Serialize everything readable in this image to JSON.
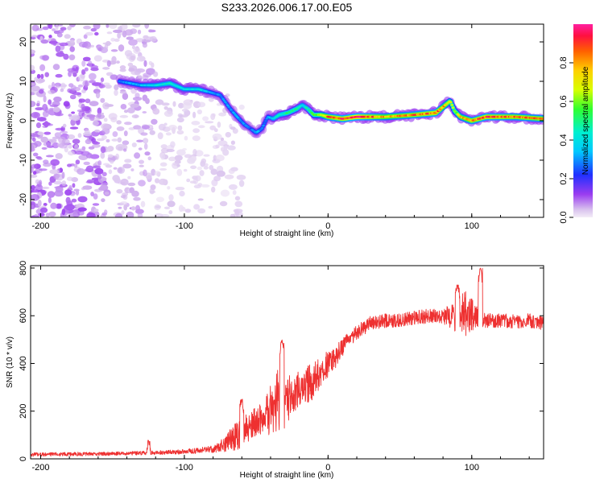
{
  "title": "S233.2026.006.17.00.E05",
  "chart_data": [
    {
      "type": "heatmap",
      "name": "spectrogram",
      "xlabel": "Height of straight line (km)",
      "ylabel": "Frequency (Hz)",
      "xlim": [
        -207,
        150
      ],
      "ylim": [
        -24.5,
        24.5
      ],
      "xticks": [
        -200,
        -100,
        0,
        100
      ],
      "yticks": [
        -20,
        -10,
        0,
        10,
        20
      ],
      "colorbar": {
        "label": "Normalized spectral amplitude",
        "range": [
          0,
          1
        ],
        "ticks": [
          0.0,
          0.2,
          0.4,
          0.6,
          0.8
        ]
      },
      "ridge": {
        "description": "frequency of the dominant signal versus height",
        "x": [
          -145,
          -130,
          -120,
          -110,
          -100,
          -90,
          -80,
          -75,
          -68,
          -62,
          -58,
          -54,
          -50,
          -46,
          -42,
          -38,
          -34,
          -28,
          -22,
          -18,
          -14,
          -10,
          -5,
          0,
          10,
          20,
          40,
          60,
          75,
          85,
          88,
          92,
          100,
          110,
          130,
          150
        ],
        "y": [
          10,
          9,
          9,
          9.5,
          8,
          8,
          7,
          6.5,
          3,
          0.5,
          -1,
          -2,
          -3,
          -2,
          1,
          0.5,
          1.5,
          2,
          3,
          4,
          3,
          1.5,
          1.5,
          1,
          0.5,
          1,
          1,
          1.5,
          2,
          5,
          2.5,
          1,
          0,
          1,
          1,
          0.5
        ],
        "amplitude": [
          0.3,
          0.35,
          0.4,
          0.45,
          0.4,
          0.4,
          0.3,
          0.3,
          0.3,
          0.3,
          0.3,
          0.25,
          0.35,
          0.3,
          0.3,
          0.4,
          0.45,
          0.5,
          0.5,
          0.4,
          0.45,
          0.55,
          0.7,
          0.85,
          0.9,
          0.95,
          0.8,
          0.85,
          0.9,
          0.7,
          0.6,
          0.75,
          0.85,
          0.9,
          0.85,
          0.85
        ]
      },
      "noise": {
        "description": "scattered low-amplitude (purple) patches",
        "regions": [
          {
            "x": [
              -207,
              -155
            ],
            "y": [
              -24.5,
              24.5
            ],
            "amplitude": [
              0.03,
              0.12
            ]
          },
          {
            "x": [
              -155,
              -120
            ],
            "y": [
              -24.5,
              24.5
            ],
            "amplitude": [
              0.02,
              0.07
            ]
          },
          {
            "x": [
              -120,
              -60
            ],
            "y": [
              -24.5,
              7
            ],
            "amplitude": [
              0.01,
              0.04
            ]
          }
        ]
      }
    },
    {
      "type": "line",
      "name": "snr",
      "xlabel": "Height of straight line (km)",
      "ylabel": "SNR (10 * v/v)",
      "color": "#ee3030",
      "xlim": [
        -207,
        150
      ],
      "ylim": [
        0,
        810
      ],
      "xticks": [
        -200,
        -100,
        0,
        100
      ],
      "yticks": [
        0,
        200,
        400,
        600,
        800
      ],
      "envelope_x": [
        -207,
        -180,
        -150,
        -125,
        -100,
        -80,
        -70,
        -60,
        -55,
        -50,
        -45,
        -40,
        -35,
        -30,
        -25,
        -20,
        -15,
        -10,
        -5,
        0,
        5,
        10,
        15,
        20,
        25,
        30,
        40,
        50,
        60,
        70,
        80,
        85,
        90,
        95,
        100,
        105,
        110,
        120,
        130,
        140,
        150
      ],
      "envelope_mean": [
        18,
        20,
        22,
        25,
        30,
        40,
        70,
        110,
        130,
        160,
        170,
        200,
        250,
        230,
        270,
        300,
        310,
        330,
        360,
        400,
        430,
        470,
        500,
        530,
        550,
        570,
        580,
        580,
        590,
        600,
        595,
        600,
        590,
        610,
        600,
        590,
        580,
        580,
        575,
        580,
        570
      ],
      "envelope_noise": [
        8,
        8,
        8,
        8,
        10,
        15,
        40,
        70,
        60,
        60,
        70,
        110,
        130,
        120,
        80,
        80,
        80,
        80,
        60,
        60,
        50,
        40,
        30,
        30,
        30,
        30,
        30,
        30,
        30,
        30,
        30,
        50,
        80,
        100,
        80,
        40,
        30,
        30,
        30,
        30,
        30
      ],
      "peaks": [
        {
          "x": -125,
          "y": 80
        },
        {
          "x": -60,
          "y": 250
        },
        {
          "x": -32,
          "y": 500
        },
        {
          "x": 90,
          "y": 730
        },
        {
          "x": 106,
          "y": 800
        }
      ]
    }
  ]
}
